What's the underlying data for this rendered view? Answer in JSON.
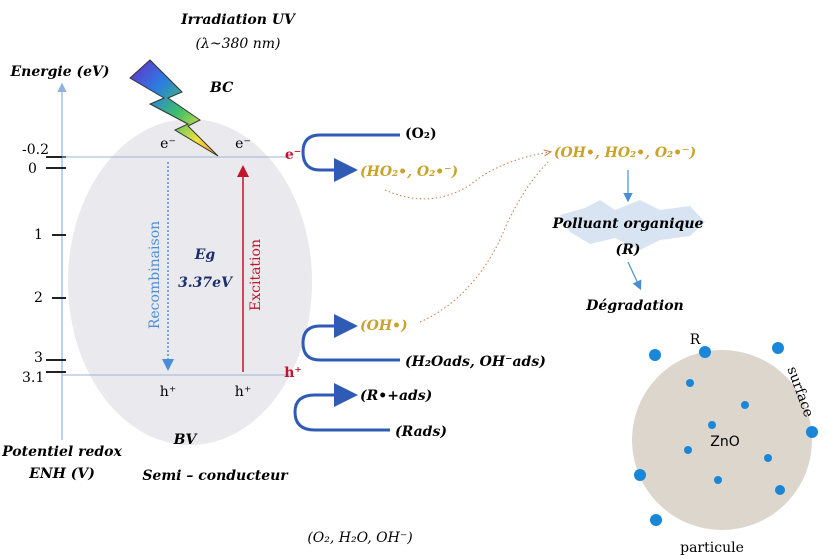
{
  "irradiation": {
    "title": "Irradiation UV",
    "wavelength": "(λ~380 nm)"
  },
  "energy_axis": {
    "title": "Energie (eV)",
    "ticks": [
      "-0.2",
      "0",
      "1",
      "2",
      "3",
      "3.1"
    ],
    "bottom_title": [
      "Potentiel redox",
      "ENH (V)"
    ]
  },
  "semiconductor": {
    "cb": "BC",
    "vb": "BV",
    "label": "Semi – conducteur",
    "cb_electrons": [
      "e⁻",
      "e⁻"
    ],
    "vb_holes": [
      "h⁺",
      "h⁺"
    ],
    "recombination": "Recombinaison",
    "excitation": "Excitation",
    "gap_symbol": "Eg",
    "gap_value": "3.37eV",
    "electron": "e⁻",
    "hole": "h⁺"
  },
  "reactions": {
    "o2": "(O₂)",
    "superoxide": "(HO₂•, O₂•⁻)",
    "hydroxyl": "(OH•)",
    "adsorbed_water": "(H₂Oads, OH⁻ads)",
    "radical_cation": "(R•+ads)",
    "adsorbed_r": "(Rads)"
  },
  "degradation": {
    "radicals": "(OH•, HO₂•, O₂•⁻)",
    "pollutant": "Polluant organique",
    "pollutant_symbol": "(R)",
    "result": "Dégradation"
  },
  "particle": {
    "r": "R",
    "surface": "surface",
    "core": "ZnO",
    "label": "particule"
  },
  "species": "(O₂, H₂O, OH⁻)"
}
